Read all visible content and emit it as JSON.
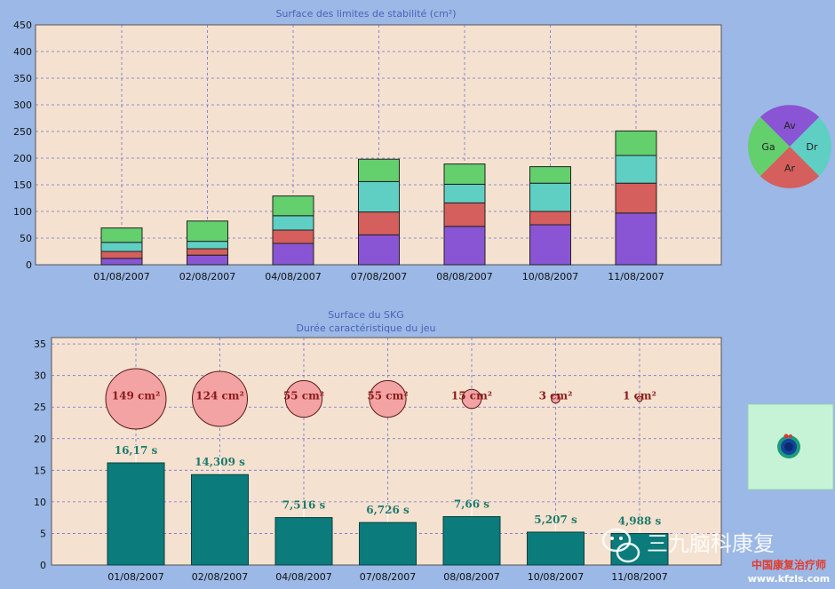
{
  "colors": {
    "background": "#9bb8e6",
    "plot_bg": "#f5e1cf",
    "grid": "#6a73d8",
    "axis": "#3a3a3a",
    "title": "#4a64b8",
    "Av": "#8a55d4",
    "Ar": "#d45f5c",
    "Dr": "#5fcfc4",
    "Ga": "#63cf6d",
    "skg_bar": "#0c7b7b",
    "skg_label": "#1f7a6b",
    "bubble_fill": "#f3a3a3",
    "bubble_text": "#8b1a1a"
  },
  "legend_pie": {
    "labels": [
      "Av",
      "Dr",
      "Ar",
      "Ga"
    ]
  },
  "watermark": {
    "name": "三九脑科康复",
    "site_name": "中国康复治疗师",
    "site_url": "www.kfzls.com",
    "icon": "wechat-icon"
  },
  "chart_data": [
    {
      "type": "bar",
      "stacked": true,
      "title": "Surface des limites de stabilité (cm²)",
      "categories": [
        "01/08/2007",
        "02/08/2007",
        "04/08/2007",
        "07/08/2007",
        "08/08/2007",
        "10/08/2007",
        "11/08/2007"
      ],
      "series": [
        {
          "name": "Av",
          "values": [
            12,
            18,
            40,
            56,
            72,
            75,
            97
          ]
        },
        {
          "name": "Ar",
          "values": [
            13,
            12,
            25,
            43,
            44,
            25,
            56
          ]
        },
        {
          "name": "Dr",
          "values": [
            17,
            14,
            27,
            57,
            35,
            53,
            52
          ]
        },
        {
          "name": "Ga",
          "values": [
            27,
            38,
            37,
            42,
            38,
            31,
            46
          ]
        }
      ],
      "ylim": [
        0,
        450
      ],
      "yticks": [
        0,
        50,
        100,
        150,
        200,
        250,
        300,
        350,
        400,
        450
      ],
      "grid": true
    },
    {
      "type": "bar",
      "title": "Surface du SKG",
      "subtitle": "Durée caractéristique du jeu",
      "categories": [
        "01/08/2007",
        "02/08/2007",
        "04/08/2007",
        "07/08/2007",
        "08/08/2007",
        "10/08/2007",
        "11/08/2007"
      ],
      "values": [
        16.17,
        14.309,
        7.516,
        6.726,
        7.66,
        5.207,
        4.988
      ],
      "value_labels": [
        "16,17 s",
        "14,309 s",
        "7,516 s",
        "6,726 s",
        "7,66 s",
        "5,207 s",
        "4,988 s"
      ],
      "surface_values": [
        149,
        124,
        55,
        55,
        15,
        3,
        1
      ],
      "surface_labels": [
        "149 cm²",
        "124 cm²",
        "55 cm²",
        "55 cm²",
        "15 cm²",
        "3 cm²",
        "1 cm²"
      ],
      "ylim": [
        0,
        36
      ],
      "yticks": [
        0,
        5,
        10,
        15,
        20,
        25,
        30,
        35
      ],
      "grid": true
    }
  ]
}
